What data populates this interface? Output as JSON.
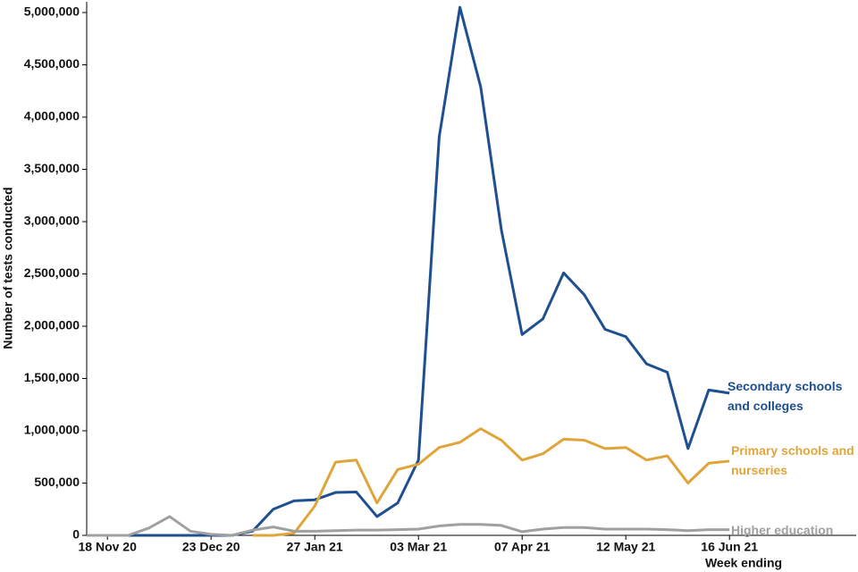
{
  "chart_data": {
    "type": "line",
    "y_label": "Number of tests conducted",
    "x_label": "Week ending",
    "categories": [
      null,
      "18 Nov 20",
      null,
      null,
      null,
      null,
      "23 Dec 20",
      null,
      null,
      null,
      null,
      "27 Jan 21",
      null,
      null,
      null,
      null,
      "03 Mar 21",
      null,
      null,
      null,
      null,
      "07 Apr 21",
      null,
      null,
      null,
      null,
      "12 May 21",
      null,
      null,
      null,
      null,
      "16 Jun 21"
    ],
    "series": [
      {
        "name": "Secondary schools and colleges",
        "color": "#1d4f91",
        "values": [
          0,
          0,
          0,
          0,
          0,
          0,
          0,
          0,
          40000,
          250000,
          330000,
          340000,
          410000,
          415000,
          180000,
          310000,
          720000,
          3810000,
          5050000,
          4290000,
          2920000,
          1920000,
          2070000,
          2510000,
          2300000,
          1970000,
          1900000,
          1640000,
          1560000,
          830000,
          1390000,
          1360000
        ]
      },
      {
        "name": "Primary schools and nurseries",
        "color": "#e0a53a",
        "values": [
          null,
          null,
          null,
          null,
          null,
          null,
          null,
          null,
          0,
          0,
          20000,
          280000,
          700000,
          720000,
          310000,
          630000,
          680000,
          840000,
          890000,
          1020000,
          910000,
          720000,
          780000,
          920000,
          910000,
          830000,
          840000,
          720000,
          760000,
          500000,
          690000,
          710000
        ]
      },
      {
        "name": "Higher education",
        "color": "#a0a0a0",
        "values": [
          0,
          0,
          0,
          70000,
          180000,
          40000,
          10000,
          0,
          50000,
          80000,
          40000,
          40000,
          45000,
          50000,
          50000,
          55000,
          60000,
          90000,
          105000,
          105000,
          95000,
          35000,
          60000,
          75000,
          75000,
          60000,
          60000,
          60000,
          55000,
          45000,
          55000,
          55000
        ]
      }
    ],
    "ylim": [
      0,
      5000000
    ],
    "yticks": [
      0,
      {
        "value": 500000,
        "label": "500,000"
      },
      {
        "value": 1000000,
        "label": "1,000,000"
      },
      {
        "value": 1500000,
        "label": "1,500,000"
      },
      {
        "value": 2000000,
        "label": "2,000,000"
      },
      {
        "value": 2500000,
        "label": "2,500,000"
      },
      {
        "value": 3000000,
        "label": "3,000,000"
      },
      {
        "value": 3500000,
        "label": "3,500,000"
      },
      {
        "value": 4000000,
        "label": "4,000,000"
      },
      {
        "value": 4500000,
        "label": "4,500,000"
      },
      {
        "value": 5000000,
        "label": "5,000,000"
      }
    ],
    "grid": false
  }
}
